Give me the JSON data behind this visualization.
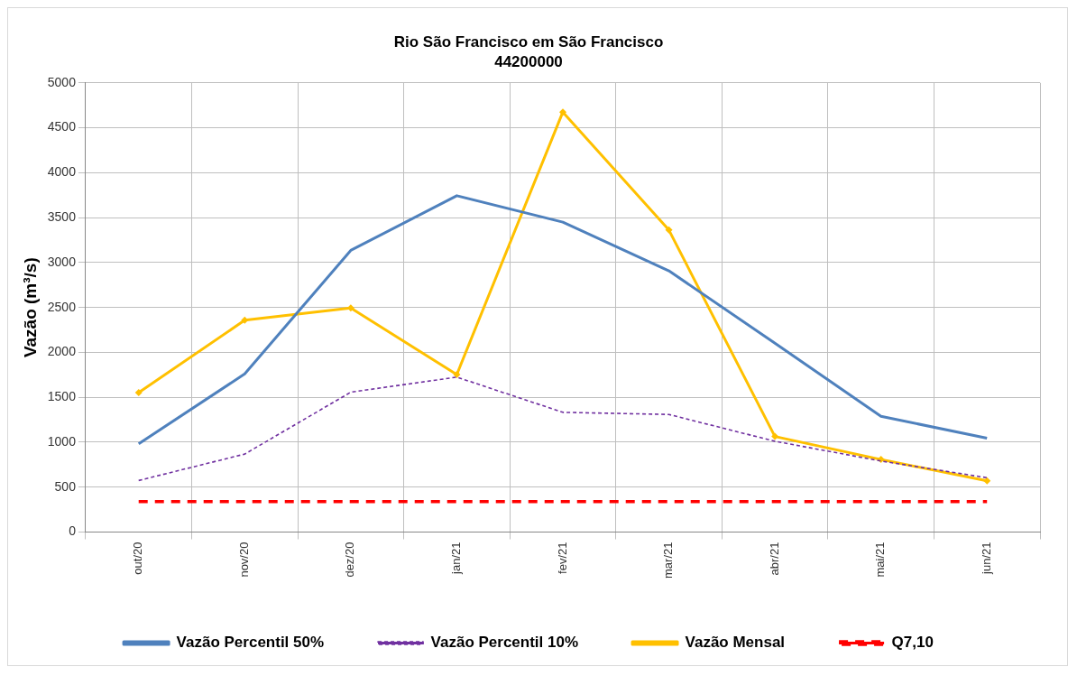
{
  "chart_data": {
    "type": "line",
    "title": "Rio São Francisco em São Francisco",
    "subtitle": "44200000",
    "ylabel": "Vazão (m³/s)",
    "categories": [
      "out/20",
      "nov/20",
      "dez/20",
      "jan/21",
      "fev/21",
      "mar/21",
      "abr/21",
      "mai/21",
      "jun/21"
    ],
    "series": [
      {
        "name": "Vazão Percentil 50%",
        "color": "#4f81bd",
        "marker": "none",
        "line_style": "solid",
        "values": [
          983,
          1760,
          3135,
          3744,
          3450,
          2908,
          2103,
          1288,
          1046
        ]
      },
      {
        "name": "Vazão Percentil 10%",
        "color": "#7030a0",
        "marker": "none",
        "line_style": "dotted",
        "values": [
          574,
          868,
          1557,
          1725,
          1333,
          1309,
          1011,
          791,
          605
        ]
      },
      {
        "name": "Vazão Mensal",
        "color": "#ffc000",
        "marker": "diamond",
        "line_style": "solid",
        "values": [
          1553,
          2358,
          2495,
          1753,
          4675,
          3362,
          1064,
          808,
          570
        ]
      },
      {
        "name": "Q7,10",
        "color": "#ff0000",
        "marker": "none",
        "line_style": "dashed",
        "values": [
          340,
          340,
          340,
          340,
          340,
          340,
          340,
          340,
          340
        ]
      }
    ],
    "ylim": [
      0,
      5000
    ],
    "yticks": [
      0,
      500,
      1000,
      1500,
      2000,
      2500,
      3000,
      3500,
      4000,
      4500,
      5000
    ],
    "grid": true,
    "legend": "bottom"
  }
}
